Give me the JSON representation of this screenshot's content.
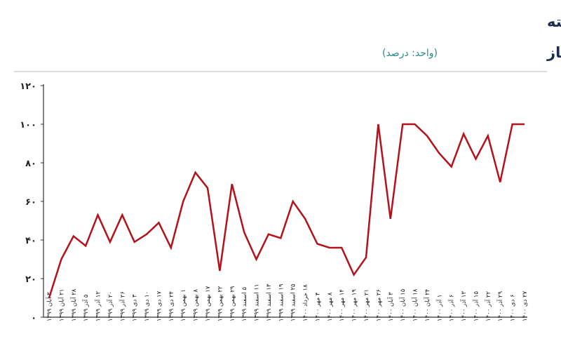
{
  "chart_data": {
    "type": "line",
    "title": "روند درصد پذیرش اوراق توسط بانک مرکزی در هفته",
    "subtitle": "های انبساطی بازار باز",
    "unit_note": "(واحد: درصد)",
    "categories": [
      "۳ آبان ۱۳۹۹",
      "۲۱ آبان ۱۳۹۹",
      "۲۸ آبان ۱۳۹۹",
      "۵ آذر ۱۳۹۹",
      "۱۲ آذر ۱۳۹۹",
      "۲۰ آذر ۱۳۹۹",
      "۲۶ آذر ۱۳۹۹",
      "۳ دی ۱۳۹۹",
      "۱۰ دی ۱۳۹۹",
      "۱۷ دی ۱۳۹۹",
      "۲۴ دی ۱۳۹۹",
      "۱ بهمن ۱۳۹۹",
      "۸ بهمن ۱۳۹۹",
      "۱۷ بهمن ۱۳۹۹",
      "۲۲ بهمن ۱۳۹۹",
      "۲۹ بهمن ۱۳۹۹",
      "۵ اسفند ۱۳۹۹",
      "۱۱ اسفند ۱۳۹۹",
      "۱۳ اسفند ۱۳۹۹",
      "۱۹ اسفند ۱۳۹۹",
      "۲۵ اسفند ۱۳۹۹",
      "۱۸ خرداد ۱۴۰۰",
      "۴ مهر ۱۴۰۰",
      "۸ مهر ۱۴۰۰",
      "۱۴ مهر ۱۴۰۰",
      "۱۹ مهر ۱۴۰۰",
      "۲۱ مهر ۱۴۰۰",
      "۲۶ مهر ۱۴۰۰",
      "۳ آبان ۱۴۰۰",
      "۱۵ آبان ۱۴۰۰",
      "۱۸ آبان ۱۴۰۰",
      "۲۴ آبان ۱۴۰۰",
      "۱ آذر ۱۴۰۰",
      "۶ آذر ۱۴۰۰",
      "۱۳ آذر ۱۴۰۰",
      "۱۵ آذر ۱۴۰۰",
      "۲۲ آذر ۱۴۰۰",
      "۲۹ آذر ۱۴۰۰",
      "۶ دی ۱۴۰۰",
      "۲۷ دی ۱۴۰۰"
    ],
    "series": [
      {
        "color": "#b3121b",
        "values": [
          10,
          30,
          42,
          37,
          53,
          39,
          53,
          39,
          43,
          49,
          36,
          60,
          75,
          67,
          24,
          69,
          44,
          30,
          43,
          41,
          60,
          51,
          38,
          36,
          36,
          22,
          31,
          100,
          51,
          100,
          100,
          94,
          85,
          78,
          95,
          82,
          94,
          70,
          100,
          100
        ]
      }
    ],
    "ylim": [
      0,
      120
    ],
    "yticks": [
      {
        "value": 0,
        "label": "۰"
      },
      {
        "value": 20,
        "label": "۲۰"
      },
      {
        "value": 40,
        "label": "۴۰"
      },
      {
        "value": 60,
        "label": "۶۰"
      },
      {
        "value": 80,
        "label": "۸۰"
      },
      {
        "value": 100,
        "label": "۱۰۰"
      },
      {
        "value": 120,
        "label": "۱۲۰"
      }
    ],
    "grid": false
  }
}
